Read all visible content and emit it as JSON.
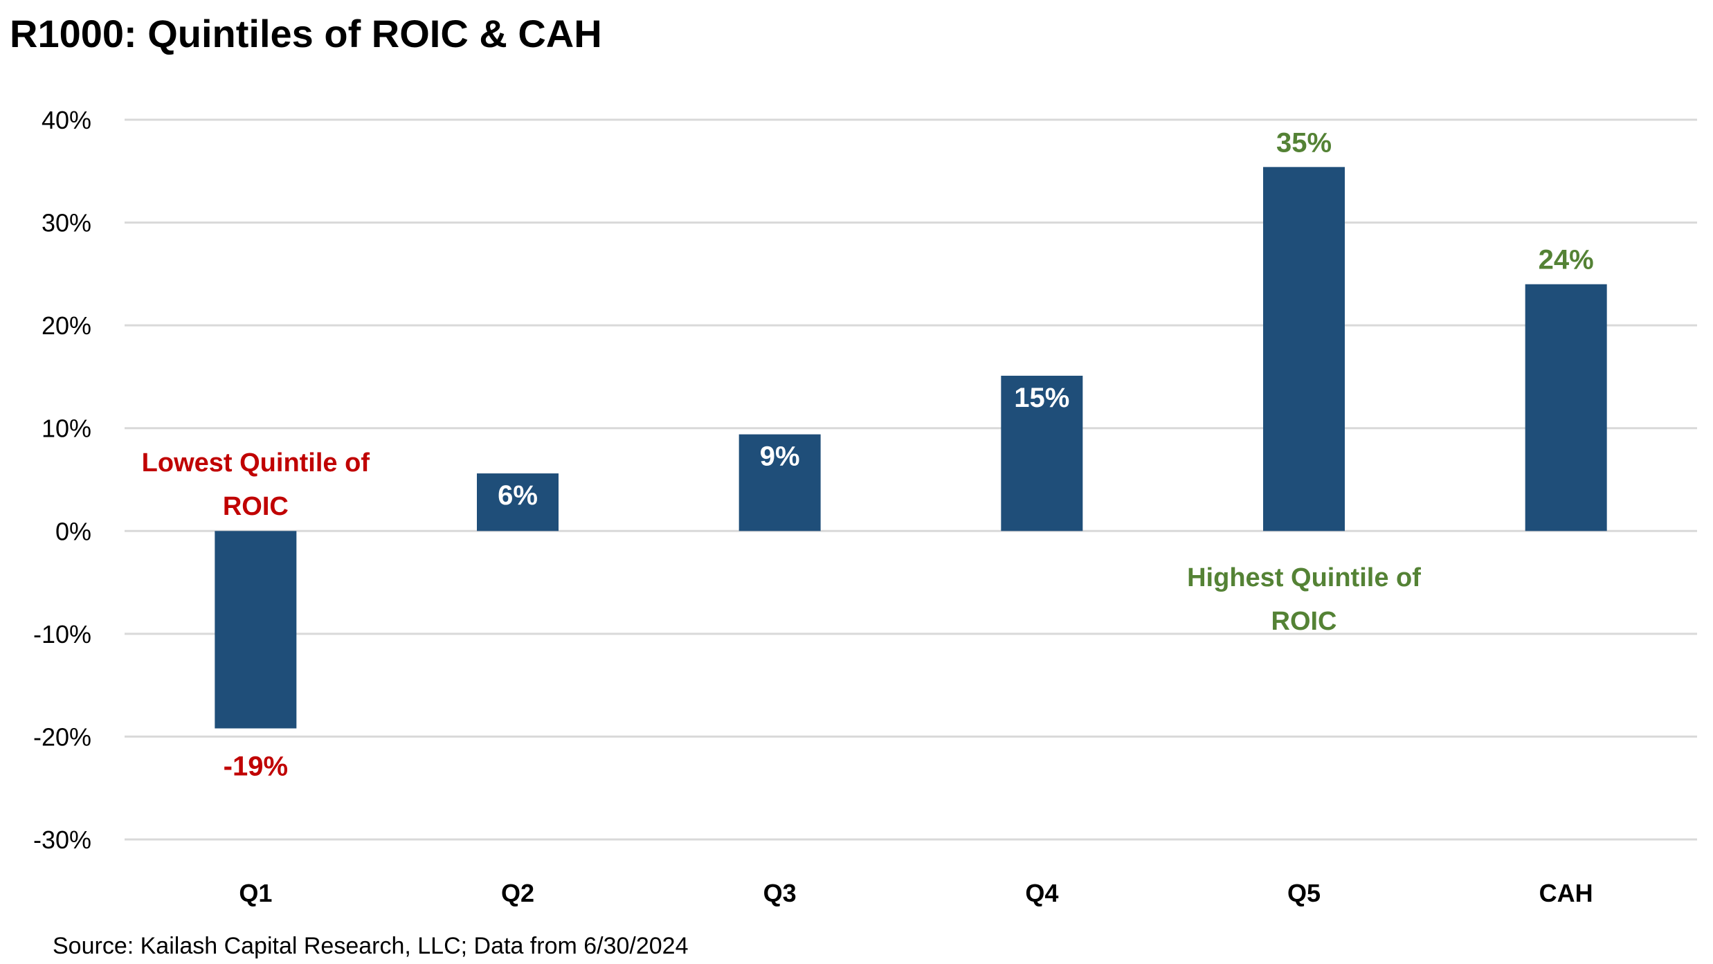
{
  "chart_data": {
    "type": "bar",
    "title": "R1000: Quintiles of ROIC & CAH",
    "categories": [
      "Q1",
      "Q2",
      "Q3",
      "Q4",
      "Q5",
      "CAH"
    ],
    "values": [
      -19.2,
      5.6,
      9.4,
      15.1,
      35.4,
      24.0
    ],
    "data_labels": [
      "-19%",
      "6%",
      "9%",
      "15%",
      "35%",
      "24%"
    ],
    "label_colors": [
      "#C00000",
      "#FFFFFF",
      "#FFFFFF",
      "#FFFFFF",
      "#548235",
      "#548235"
    ],
    "ylim": [
      -30,
      40
    ],
    "yticks": [
      40,
      30,
      20,
      10,
      0,
      -10,
      -20,
      -30
    ],
    "ytick_labels": [
      "40%",
      "30%",
      "20%",
      "10%",
      "0%",
      "-10%",
      "-20%",
      "-30%"
    ],
    "xlabel": "",
    "ylabel": "",
    "grid": true,
    "bar_color": "#1F4E79",
    "annotations": [
      {
        "category": "Q1",
        "lines": [
          "Lowest Quintile of",
          "ROIC"
        ],
        "color": "#C00000"
      },
      {
        "category": "Q5",
        "lines": [
          "Highest Quintile of",
          "ROIC"
        ],
        "color": "#548235"
      }
    ],
    "source": "Source: Kailash Capital Research, LLC; Data from 6/30/2024"
  }
}
